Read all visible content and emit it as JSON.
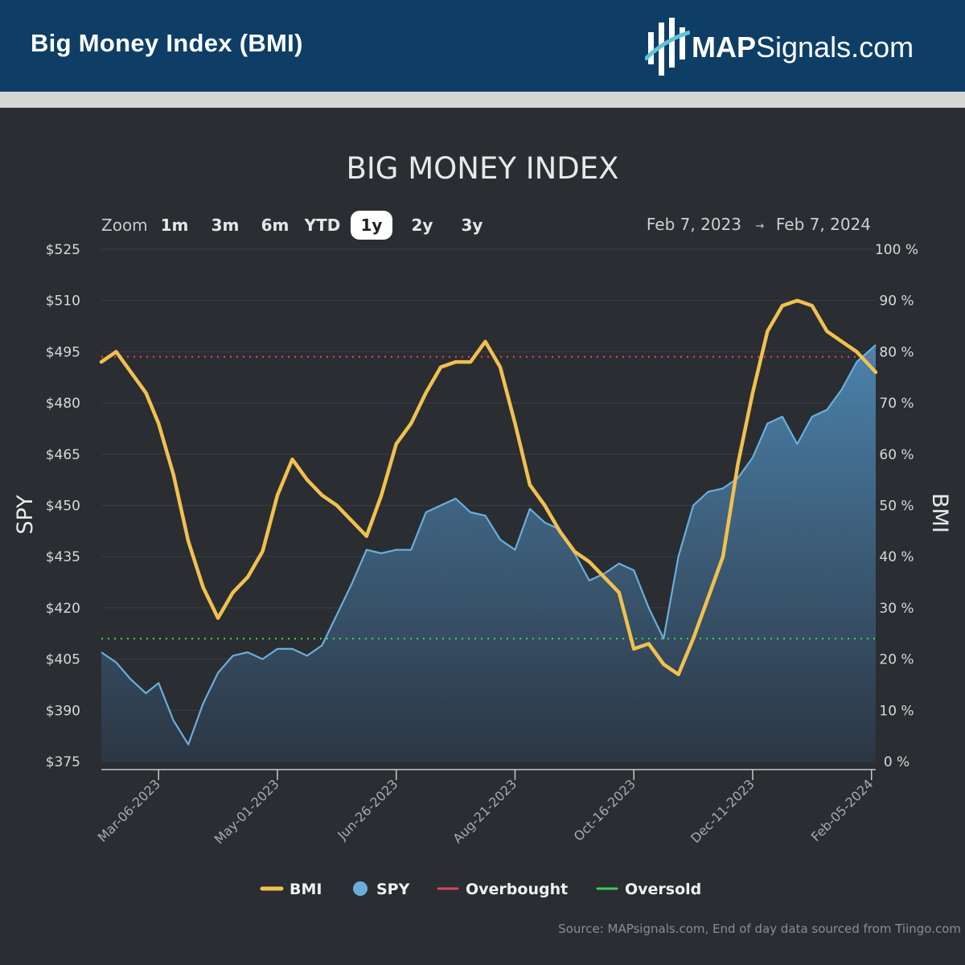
{
  "header": {
    "title": "Big Money Index (BMI)",
    "logo_bold": "MAP",
    "logo_rest": "Signals.com"
  },
  "zoom": {
    "label": "Zoom",
    "options": [
      "1m",
      "3m",
      "6m",
      "YTD",
      "1y",
      "2y",
      "3y"
    ],
    "selected": "1y"
  },
  "range": {
    "from": "Feb 7, 2023",
    "arrow": "→",
    "to": "Feb 7, 2024"
  },
  "legend": [
    {
      "label": "BMI",
      "color": "#f1c04f",
      "marker": "line"
    },
    {
      "label": "SPY",
      "color": "#6aaedc",
      "marker": "dot"
    },
    {
      "label": "Overbought",
      "color": "#e0415f",
      "marker": "line"
    },
    {
      "label": "Oversold",
      "color": "#3fcc4f",
      "marker": "line"
    }
  ],
  "source": "Source: MAPsignals.com, End of day data sourced from Tiingo.com",
  "colors": {
    "bmi": "#f1c04f",
    "spy_line": "#6aaedc",
    "spy_fill_top": "#4d87b3",
    "spy_fill_bottom": "#2c3745",
    "overbought": "#e0415f",
    "oversold": "#3fcc4f",
    "background": "#2a2d31",
    "header": "#0e3e66"
  },
  "chart_data": {
    "type": "line",
    "title": "BIG MONEY INDEX",
    "ylabel_left": "SPY",
    "ylabel_right": "BMI",
    "y_left": {
      "min": 375,
      "max": 525,
      "ticks": [
        375,
        390,
        405,
        420,
        435,
        450,
        465,
        480,
        495,
        510,
        525
      ],
      "tick_labels": [
        "$375",
        "$390",
        "$405",
        "$420",
        "$435",
        "$450",
        "$465",
        "$480",
        "$495",
        "$510",
        "$525"
      ]
    },
    "y_right": {
      "min": 0,
      "max": 100,
      "ticks": [
        0,
        10,
        20,
        30,
        40,
        50,
        60,
        70,
        80,
        90,
        100
      ],
      "tick_labels": [
        "0 %",
        "10 %",
        "20 %",
        "30 %",
        "40 %",
        "50 %",
        "60 %",
        "70 %",
        "80 %",
        "90 %",
        "100 %"
      ]
    },
    "x": {
      "start": "2023-02-07",
      "end": "2024-02-07",
      "ticks": [
        "2023-03-06",
        "2023-05-01",
        "2023-06-26",
        "2023-08-21",
        "2023-10-16",
        "2023-12-11",
        "2024-02-05"
      ],
      "tick_labels": [
        "Mar-06-2023",
        "May-01-2023",
        "Jun-26-2023",
        "Aug-21-2023",
        "Oct-16-2023",
        "Dec-11-2023",
        "Feb-05-2024"
      ]
    },
    "thresholds": {
      "overbought": 79,
      "oversold": 24
    },
    "series": [
      {
        "name": "BMI",
        "axis": "right",
        "points": [
          [
            "2023-02-07",
            78
          ],
          [
            "2023-02-14",
            80
          ],
          [
            "2023-02-21",
            76
          ],
          [
            "2023-02-28",
            72
          ],
          [
            "2023-03-06",
            66
          ],
          [
            "2023-03-13",
            56
          ],
          [
            "2023-03-20",
            43
          ],
          [
            "2023-03-27",
            34
          ],
          [
            "2023-04-03",
            28
          ],
          [
            "2023-04-10",
            33
          ],
          [
            "2023-04-17",
            36
          ],
          [
            "2023-04-24",
            41
          ],
          [
            "2023-05-01",
            52
          ],
          [
            "2023-05-08",
            59
          ],
          [
            "2023-05-15",
            55
          ],
          [
            "2023-05-22",
            52
          ],
          [
            "2023-05-29",
            50
          ],
          [
            "2023-06-05",
            47
          ],
          [
            "2023-06-12",
            44
          ],
          [
            "2023-06-19",
            52
          ],
          [
            "2023-06-26",
            62
          ],
          [
            "2023-07-03",
            66
          ],
          [
            "2023-07-10",
            72
          ],
          [
            "2023-07-17",
            77
          ],
          [
            "2023-07-24",
            78
          ],
          [
            "2023-07-31",
            78
          ],
          [
            "2023-08-07",
            82
          ],
          [
            "2023-08-14",
            77
          ],
          [
            "2023-08-21",
            66
          ],
          [
            "2023-08-28",
            54
          ],
          [
            "2023-09-04",
            50
          ],
          [
            "2023-09-11",
            45
          ],
          [
            "2023-09-18",
            41
          ],
          [
            "2023-09-25",
            39
          ],
          [
            "2023-10-02",
            36
          ],
          [
            "2023-10-09",
            33
          ],
          [
            "2023-10-16",
            22
          ],
          [
            "2023-10-23",
            23
          ],
          [
            "2023-10-30",
            19
          ],
          [
            "2023-11-06",
            17
          ],
          [
            "2023-11-13",
            24
          ],
          [
            "2023-11-20",
            32
          ],
          [
            "2023-11-27",
            40
          ],
          [
            "2023-12-04",
            58
          ],
          [
            "2023-12-11",
            72
          ],
          [
            "2023-12-18",
            84
          ],
          [
            "2023-12-25",
            89
          ],
          [
            "2024-01-01",
            90
          ],
          [
            "2024-01-08",
            89
          ],
          [
            "2024-01-15",
            84
          ],
          [
            "2024-01-22",
            82
          ],
          [
            "2024-01-29",
            80
          ],
          [
            "2024-02-07",
            76
          ]
        ]
      },
      {
        "name": "SPY",
        "axis": "left",
        "points": [
          [
            "2023-02-07",
            407
          ],
          [
            "2023-02-14",
            404
          ],
          [
            "2023-02-21",
            399
          ],
          [
            "2023-02-28",
            395
          ],
          [
            "2023-03-06",
            398
          ],
          [
            "2023-03-13",
            387
          ],
          [
            "2023-03-20",
            380
          ],
          [
            "2023-03-27",
            392
          ],
          [
            "2023-04-03",
            401
          ],
          [
            "2023-04-10",
            406
          ],
          [
            "2023-04-17",
            407
          ],
          [
            "2023-04-24",
            405
          ],
          [
            "2023-05-01",
            408
          ],
          [
            "2023-05-08",
            408
          ],
          [
            "2023-05-15",
            406
          ],
          [
            "2023-05-22",
            409
          ],
          [
            "2023-05-29",
            418
          ],
          [
            "2023-06-05",
            427
          ],
          [
            "2023-06-12",
            437
          ],
          [
            "2023-06-19",
            436
          ],
          [
            "2023-06-26",
            437
          ],
          [
            "2023-07-03",
            437
          ],
          [
            "2023-07-10",
            448
          ],
          [
            "2023-07-17",
            450
          ],
          [
            "2023-07-24",
            452
          ],
          [
            "2023-07-31",
            448
          ],
          [
            "2023-08-07",
            447
          ],
          [
            "2023-08-14",
            440
          ],
          [
            "2023-08-21",
            437
          ],
          [
            "2023-08-28",
            449
          ],
          [
            "2023-09-04",
            445
          ],
          [
            "2023-09-11",
            443
          ],
          [
            "2023-09-18",
            436
          ],
          [
            "2023-09-25",
            428
          ],
          [
            "2023-10-02",
            430
          ],
          [
            "2023-10-09",
            433
          ],
          [
            "2023-10-16",
            431
          ],
          [
            "2023-10-23",
            420
          ],
          [
            "2023-10-30",
            411
          ],
          [
            "2023-11-06",
            435
          ],
          [
            "2023-11-13",
            450
          ],
          [
            "2023-11-20",
            454
          ],
          [
            "2023-11-27",
            455
          ],
          [
            "2023-12-04",
            458
          ],
          [
            "2023-12-11",
            464
          ],
          [
            "2023-12-18",
            474
          ],
          [
            "2023-12-25",
            476
          ],
          [
            "2024-01-01",
            468
          ],
          [
            "2024-01-08",
            476
          ],
          [
            "2024-01-15",
            478
          ],
          [
            "2024-01-22",
            484
          ],
          [
            "2024-01-29",
            492
          ],
          [
            "2024-02-07",
            497
          ]
        ]
      }
    ]
  }
}
